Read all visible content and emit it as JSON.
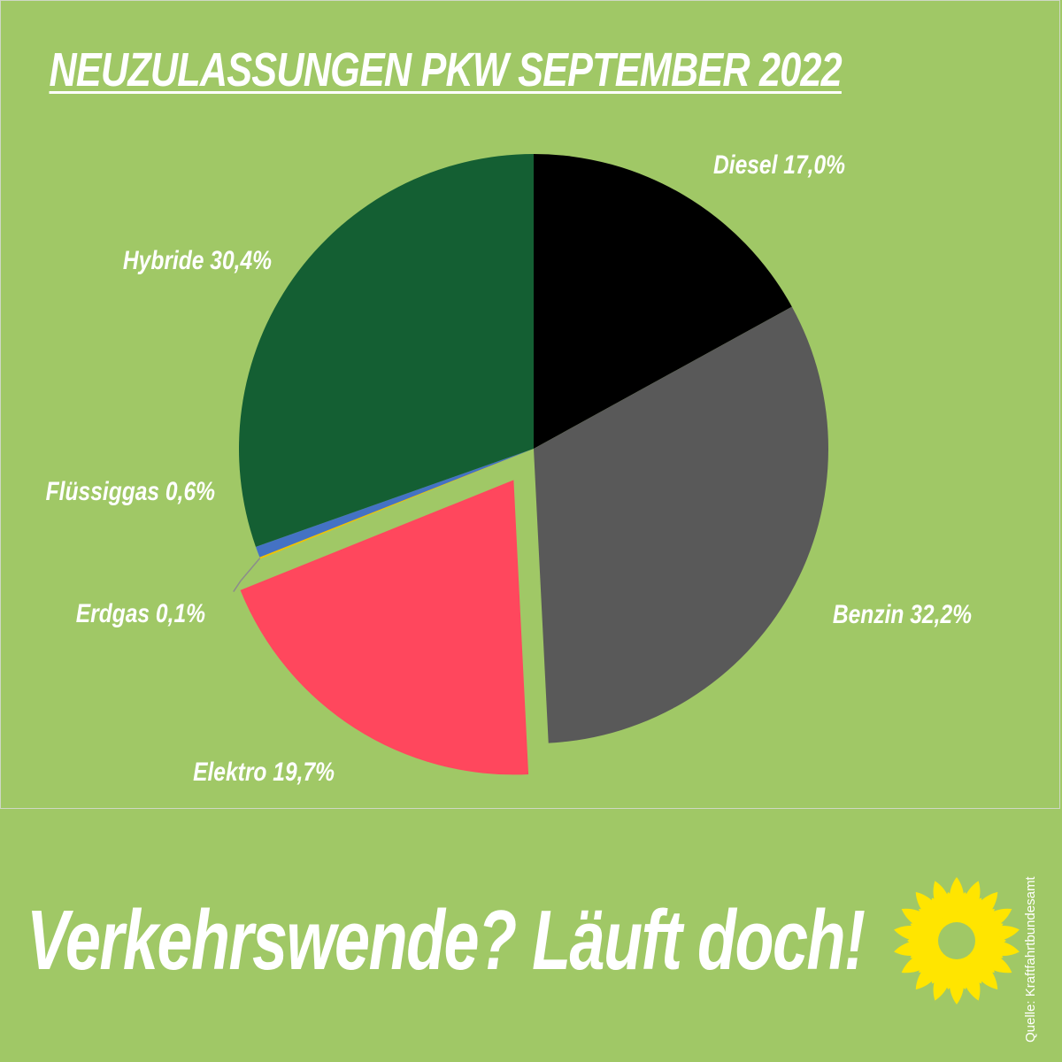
{
  "chart_data": {
    "type": "pie",
    "title": "NEUZULASSUNGEN PKW SEPTEMBER 2022",
    "slices": [
      {
        "label": "Diesel 17,0%",
        "value": 17.0,
        "color": "#000000",
        "exploded": false
      },
      {
        "label": "Benzin 32,2%",
        "value": 32.2,
        "color": "#595959",
        "exploded": false
      },
      {
        "label": "Elektro 19,7%",
        "value": 19.7,
        "color": "#ff475d",
        "exploded": true
      },
      {
        "label": "Erdgas 0,1%",
        "value": 0.1,
        "color": "#f2c200",
        "exploded": false
      },
      {
        "label": "Flüssiggas 0,6%",
        "value": 0.6,
        "color": "#4472c4",
        "exploded": false
      },
      {
        "label": "Hybride 30,4%",
        "value": 30.4,
        "color": "#145f33",
        "exploded": false
      }
    ],
    "legend": "none"
  },
  "footer": {
    "slogan": "Verkehrswende? Läuft doch!",
    "source": "Quelle: Kraftfahrtbundesamt",
    "logo_icon": "sunflower-icon"
  },
  "colors": {
    "background": "#a0c866",
    "text": "#ffffff",
    "sunflower": "#ffe500"
  }
}
